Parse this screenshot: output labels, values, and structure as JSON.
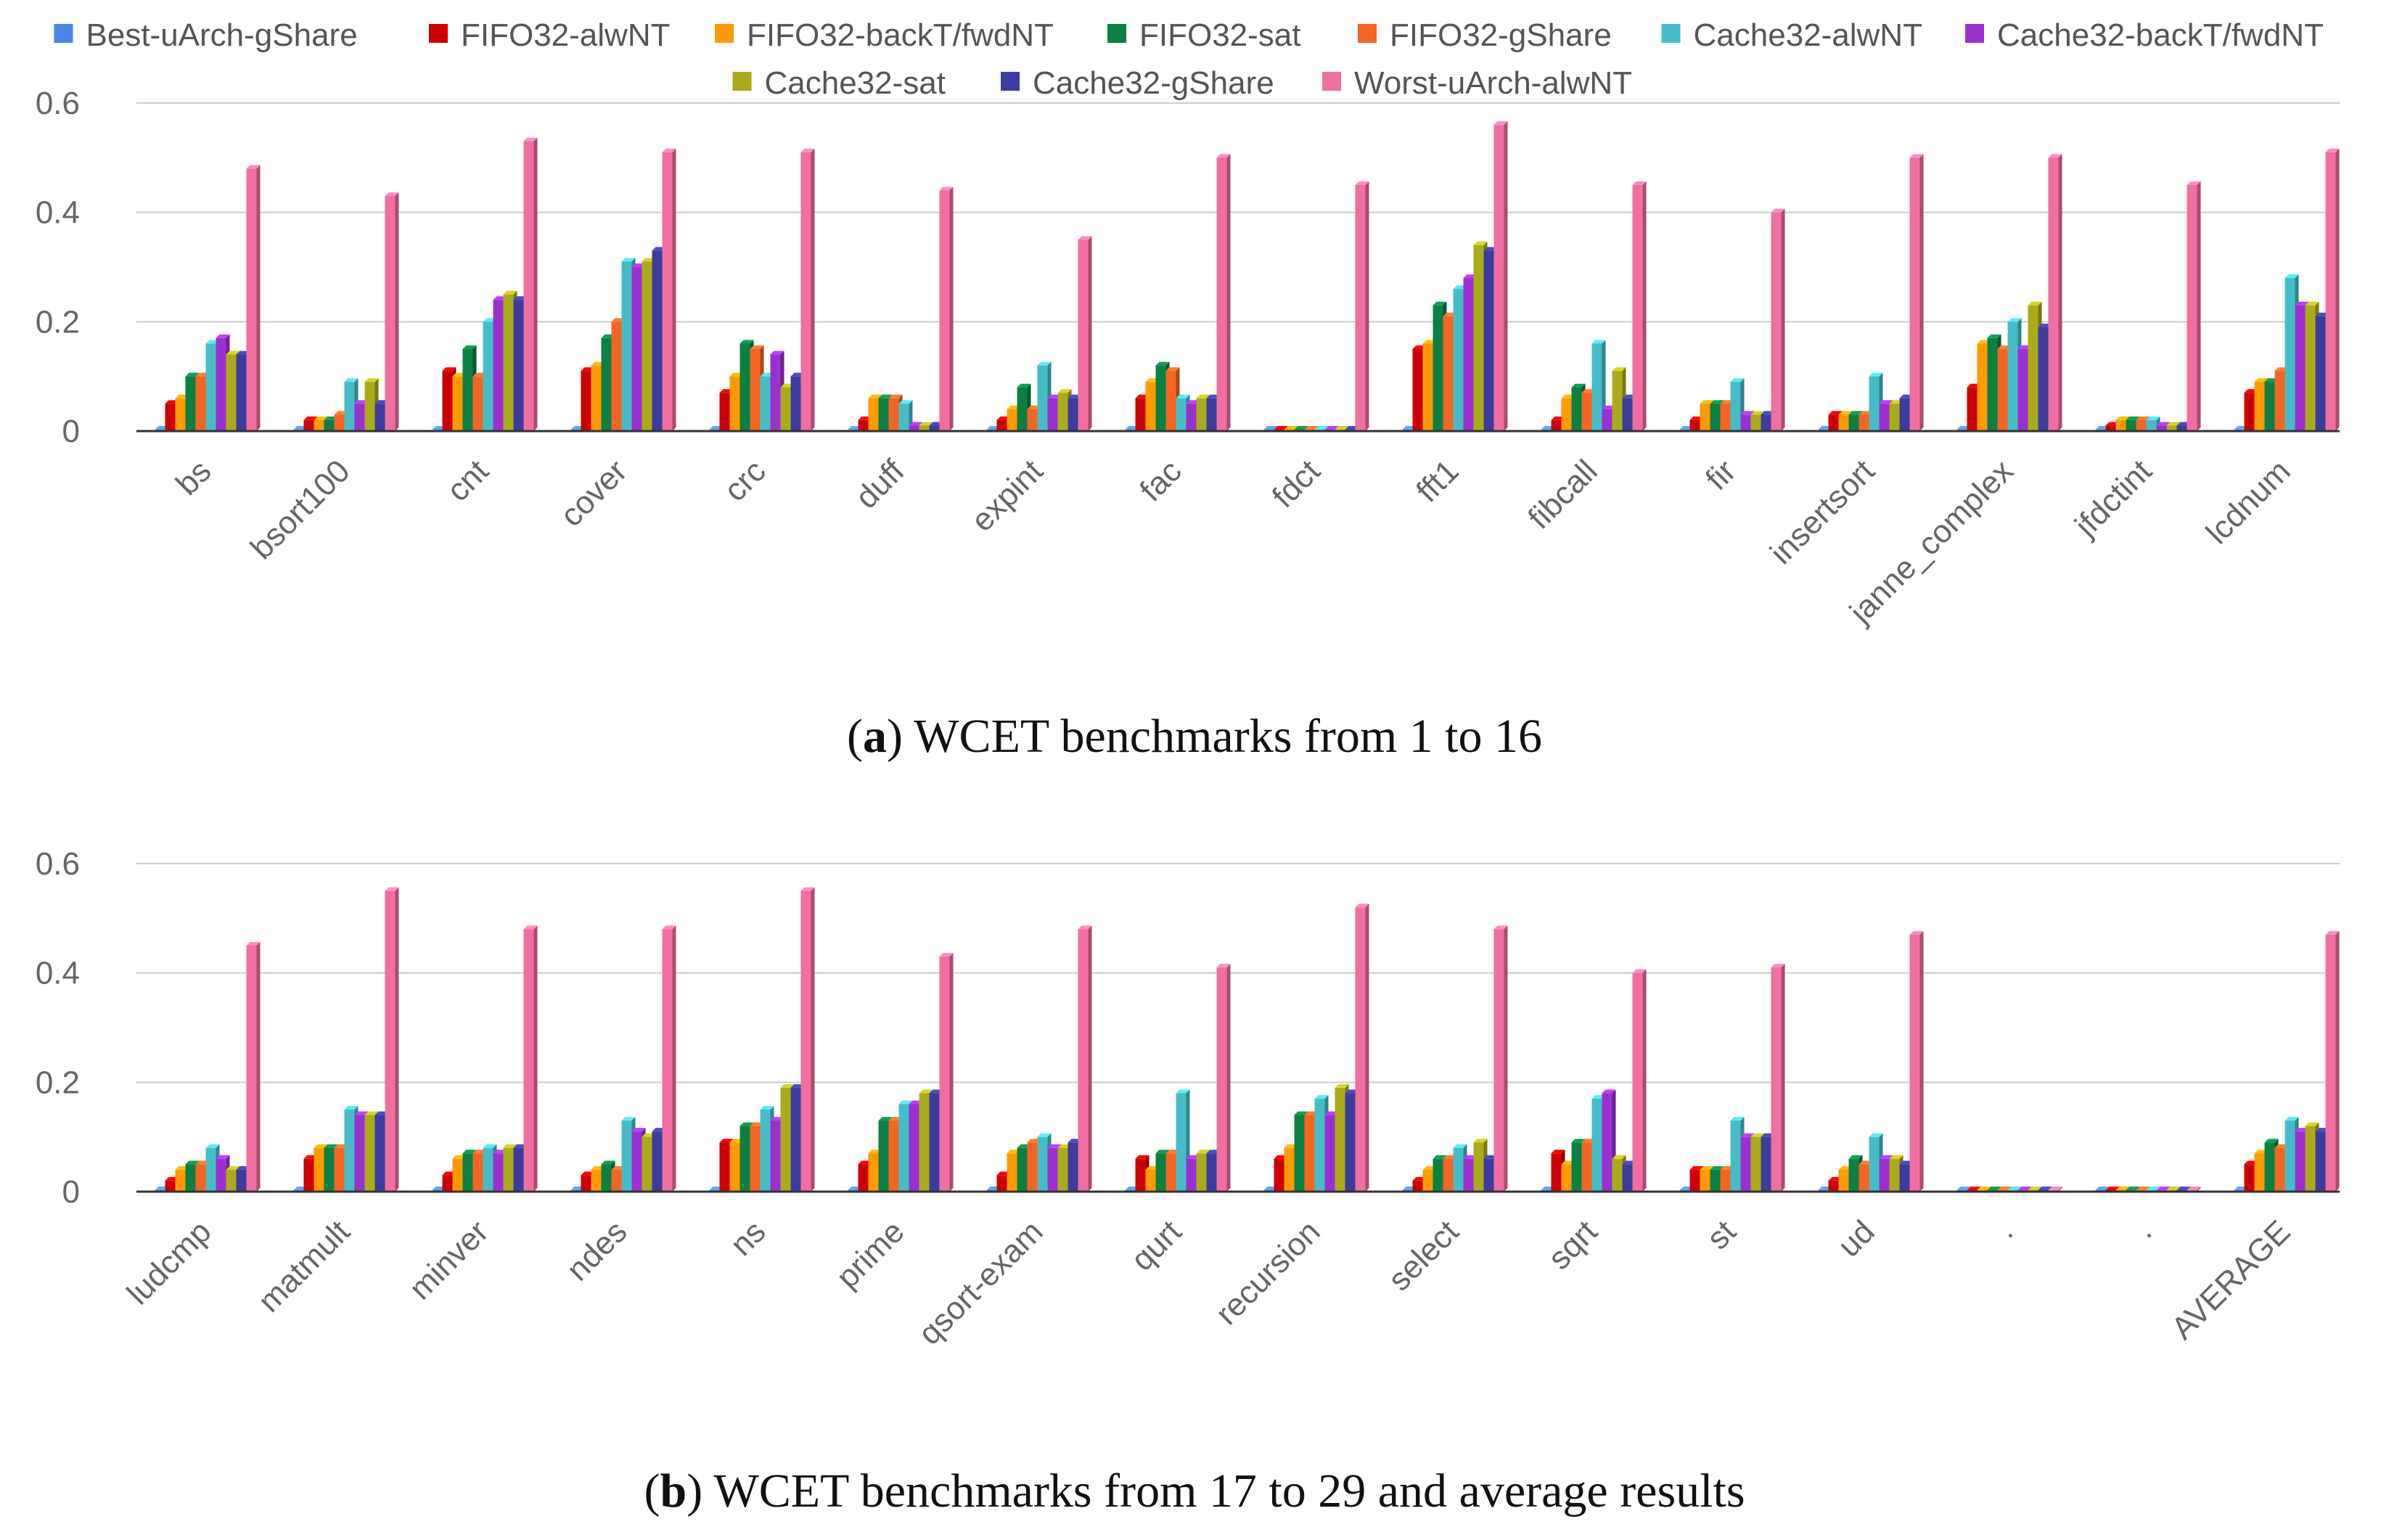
{
  "legend": [
    {
      "name": "Best-uArch-gShare",
      "color": "#4A86E8"
    },
    {
      "name": "FIFO32-alwNT",
      "color": "#CC0000"
    },
    {
      "name": "FIFO32-backT/fwdNT",
      "color": "#FF9900"
    },
    {
      "name": "FIFO32-sat",
      "color": "#0B8043"
    },
    {
      "name": "FIFO32-gShare",
      "color": "#F46524"
    },
    {
      "name": "Cache32-alwNT",
      "color": "#46BDC6"
    },
    {
      "name": "Cache32-backT/fwdNT",
      "color": "#9B30D0"
    },
    {
      "name": "Cache32-sat",
      "color": "#ABAB1A"
    },
    {
      "name": "Cache32-gShare",
      "color": "#3C3C9E"
    },
    {
      "name": "Worst-uArch-alwNT",
      "color": "#F06EA0"
    }
  ],
  "chart_data": [
    {
      "type": "bar",
      "caption_label": "a",
      "caption_text": "WCET benchmarks from 1 to 16",
      "ylim": [
        0,
        0.6
      ],
      "yticks": [
        0,
        0.2,
        0.4,
        0.6
      ],
      "ytick_labels": [
        "0",
        "0.2",
        "0.4",
        "0.6"
      ],
      "grid": true,
      "legend_position": "top",
      "categories": [
        "bs",
        "bsort100",
        "cnt",
        "cover",
        "crc",
        "duff",
        "expint",
        "fac",
        "fdct",
        "fft1",
        "fibcall",
        "fir",
        "insertsort",
        "janne_complex",
        "jfdctint",
        "lcdnum"
      ],
      "series": [
        {
          "name": "Best-uArch-gShare",
          "values": [
            0,
            0,
            0,
            0,
            0,
            0,
            0,
            0,
            0,
            0,
            0,
            0,
            0,
            0,
            0,
            0
          ]
        },
        {
          "name": "FIFO32-alwNT",
          "values": [
            0.05,
            0.02,
            0.11,
            0.11,
            0.07,
            0.02,
            0.02,
            0.06,
            0,
            0.15,
            0.02,
            0.02,
            0.03,
            0.08,
            0.01,
            0.07
          ]
        },
        {
          "name": "FIFO32-backT/fwdNT",
          "values": [
            0.06,
            0.02,
            0.1,
            0.12,
            0.1,
            0.06,
            0.04,
            0.09,
            0,
            0.16,
            0.06,
            0.05,
            0.03,
            0.16,
            0.02,
            0.09
          ]
        },
        {
          "name": "FIFO32-sat",
          "values": [
            0.1,
            0.02,
            0.15,
            0.17,
            0.16,
            0.06,
            0.08,
            0.12,
            0,
            0.23,
            0.08,
            0.05,
            0.03,
            0.17,
            0.02,
            0.09
          ]
        },
        {
          "name": "FIFO32-gShare",
          "values": [
            0.1,
            0.03,
            0.1,
            0.2,
            0.15,
            0.06,
            0.04,
            0.11,
            0,
            0.21,
            0.07,
            0.05,
            0.03,
            0.15,
            0.02,
            0.11
          ]
        },
        {
          "name": "Cache32-alwNT",
          "values": [
            0.16,
            0.09,
            0.2,
            0.31,
            0.1,
            0.05,
            0.12,
            0.06,
            0,
            0.26,
            0.16,
            0.09,
            0.1,
            0.2,
            0.02,
            0.28
          ]
        },
        {
          "name": "Cache32-backT/fwdNT",
          "values": [
            0.17,
            0.05,
            0.24,
            0.3,
            0.14,
            0.01,
            0.06,
            0.05,
            0,
            0.28,
            0.04,
            0.03,
            0.05,
            0.15,
            0.01,
            0.23
          ]
        },
        {
          "name": "Cache32-sat",
          "values": [
            0.14,
            0.09,
            0.25,
            0.31,
            0.08,
            0.01,
            0.07,
            0.06,
            0,
            0.34,
            0.11,
            0.03,
            0.05,
            0.23,
            0.01,
            0.23
          ]
        },
        {
          "name": "Cache32-gShare",
          "values": [
            0.14,
            0.05,
            0.24,
            0.33,
            0.1,
            0.01,
            0.06,
            0.06,
            0,
            0.33,
            0.06,
            0.03,
            0.06,
            0.19,
            0.01,
            0.21
          ]
        },
        {
          "name": "Worst-uArch-alwNT",
          "values": [
            0.48,
            0.43,
            0.53,
            0.51,
            0.51,
            0.44,
            0.35,
            0.5,
            0.45,
            0.56,
            0.45,
            0.4,
            0.5,
            0.5,
            0.45,
            0.51
          ]
        }
      ]
    },
    {
      "type": "bar",
      "caption_label": "b",
      "caption_text": "WCET benchmarks from 17 to 29 and average results",
      "ylim": [
        0,
        0.6
      ],
      "yticks": [
        0,
        0.2,
        0.4,
        0.6
      ],
      "ytick_labels": [
        "0",
        "0.2",
        "0.4",
        "0.6"
      ],
      "grid": true,
      "categories": [
        "ludcmp",
        "matmult",
        "minver",
        "ndes",
        "ns",
        "prime",
        "qsort-exam",
        "qurt",
        "recursion",
        "select",
        "sqrt",
        "st",
        "ud",
        ".",
        ".",
        "AVERAGE"
      ],
      "series": [
        {
          "name": "Best-uArch-gShare",
          "values": [
            0,
            0,
            0,
            0,
            0,
            0,
            0,
            0,
            0,
            0,
            0,
            0,
            0,
            0,
            0,
            0
          ]
        },
        {
          "name": "FIFO32-alwNT",
          "values": [
            0.02,
            0.06,
            0.03,
            0.03,
            0.09,
            0.05,
            0.03,
            0.06,
            0.06,
            0.02,
            0.07,
            0.04,
            0.02,
            0,
            0,
            0.05
          ]
        },
        {
          "name": "FIFO32-backT/fwdNT",
          "values": [
            0.04,
            0.08,
            0.06,
            0.04,
            0.09,
            0.07,
            0.07,
            0.04,
            0.08,
            0.04,
            0.05,
            0.04,
            0.04,
            0,
            0,
            0.07
          ]
        },
        {
          "name": "FIFO32-sat",
          "values": [
            0.05,
            0.08,
            0.07,
            0.05,
            0.12,
            0.13,
            0.08,
            0.07,
            0.14,
            0.06,
            0.09,
            0.04,
            0.06,
            0,
            0,
            0.09
          ]
        },
        {
          "name": "FIFO32-gShare",
          "values": [
            0.05,
            0.08,
            0.07,
            0.04,
            0.12,
            0.13,
            0.09,
            0.07,
            0.14,
            0.06,
            0.09,
            0.04,
            0.05,
            0,
            0,
            0.08
          ]
        },
        {
          "name": "Cache32-alwNT",
          "values": [
            0.08,
            0.15,
            0.08,
            0.13,
            0.15,
            0.16,
            0.1,
            0.18,
            0.17,
            0.08,
            0.17,
            0.13,
            0.1,
            0,
            0,
            0.13
          ]
        },
        {
          "name": "Cache32-backT/fwdNT",
          "values": [
            0.06,
            0.14,
            0.07,
            0.11,
            0.13,
            0.16,
            0.08,
            0.06,
            0.14,
            0.06,
            0.18,
            0.1,
            0.06,
            0,
            0,
            0.11
          ]
        },
        {
          "name": "Cache32-sat",
          "values": [
            0.04,
            0.14,
            0.08,
            0.1,
            0.19,
            0.18,
            0.08,
            0.07,
            0.19,
            0.09,
            0.06,
            0.1,
            0.06,
            0,
            0,
            0.12
          ]
        },
        {
          "name": "Cache32-gShare",
          "values": [
            0.04,
            0.14,
            0.08,
            0.11,
            0.19,
            0.18,
            0.09,
            0.07,
            0.18,
            0.06,
            0.05,
            0.1,
            0.05,
            0,
            0,
            0.11
          ]
        },
        {
          "name": "Worst-uArch-alwNT",
          "values": [
            0.45,
            0.55,
            0.48,
            0.48,
            0.55,
            0.43,
            0.48,
            0.41,
            0.52,
            0.48,
            0.4,
            0.41,
            0.47,
            0,
            0,
            0.47
          ]
        }
      ]
    }
  ]
}
